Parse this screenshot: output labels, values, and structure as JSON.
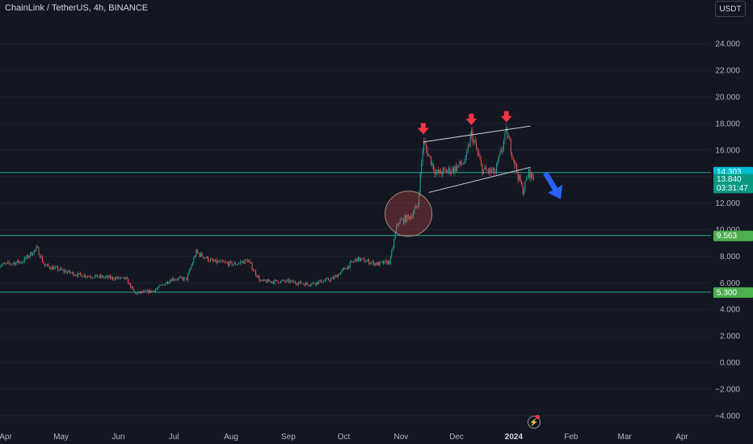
{
  "header": {
    "title": "ChainLink / TetherUS, 4h, BINANCE",
    "currency_button": "USDT"
  },
  "colors": {
    "background": "#131722",
    "up": "#26a69a",
    "down": "#ef5350",
    "arrow_red": "#f23645",
    "arrow_blue": "#2962ff",
    "level_line": "#26a69a",
    "green_badge": "#4caf50",
    "teal_badge": "#00bcd4"
  },
  "chart_data": {
    "type": "candlestick",
    "title": "",
    "x_ticks": [
      "Apr",
      "May",
      "Jun",
      "Jul",
      "Aug",
      "Sep",
      "Oct",
      "Nov",
      "Dec",
      "2024",
      "Feb",
      "Mar",
      "Apr"
    ],
    "y_ticks": [
      "24.000",
      "22.000",
      "20.000",
      "18.000",
      "16.000",
      "14.000",
      "12.000",
      "10.000",
      "8.000",
      "6.000",
      "4.000",
      "2.000",
      "0.000",
      "−2.000",
      "−4.000"
    ],
    "ylim": [
      -4.5,
      26.5
    ],
    "price_path": [
      {
        "date": "2023-03-28",
        "price": 7.3
      },
      {
        "date": "2023-04-10",
        "price": 7.6
      },
      {
        "date": "2023-04-18",
        "price": 8.6
      },
      {
        "date": "2023-04-22",
        "price": 7.3
      },
      {
        "date": "2023-05-10",
        "price": 6.6
      },
      {
        "date": "2023-05-25",
        "price": 6.4
      },
      {
        "date": "2023-06-05",
        "price": 6.3
      },
      {
        "date": "2023-06-10",
        "price": 5.2
      },
      {
        "date": "2023-06-20",
        "price": 5.4
      },
      {
        "date": "2023-06-30",
        "price": 6.3
      },
      {
        "date": "2023-07-08",
        "price": 6.3
      },
      {
        "date": "2023-07-13",
        "price": 8.3
      },
      {
        "date": "2023-07-22",
        "price": 7.6
      },
      {
        "date": "2023-08-03",
        "price": 7.4
      },
      {
        "date": "2023-08-10",
        "price": 7.7
      },
      {
        "date": "2023-08-17",
        "price": 6.1
      },
      {
        "date": "2023-09-01",
        "price": 6.1
      },
      {
        "date": "2023-09-12",
        "price": 5.9
      },
      {
        "date": "2023-09-25",
        "price": 6.3
      },
      {
        "date": "2023-10-08",
        "price": 7.8
      },
      {
        "date": "2023-10-20",
        "price": 7.4
      },
      {
        "date": "2023-10-26",
        "price": 7.6
      },
      {
        "date": "2023-10-30",
        "price": 10.5
      },
      {
        "date": "2023-11-06",
        "price": 11.0
      },
      {
        "date": "2023-11-10",
        "price": 11.8
      },
      {
        "date": "2023-11-13",
        "price": 16.6
      },
      {
        "date": "2023-11-20",
        "price": 14.2
      },
      {
        "date": "2023-11-30",
        "price": 14.6
      },
      {
        "date": "2023-12-06",
        "price": 15.2
      },
      {
        "date": "2023-12-09",
        "price": 17.3
      },
      {
        "date": "2023-12-15",
        "price": 14.5
      },
      {
        "date": "2023-12-22",
        "price": 14.3
      },
      {
        "date": "2023-12-28",
        "price": 17.4
      },
      {
        "date": "2024-01-03",
        "price": 14.2
      },
      {
        "date": "2024-01-06",
        "price": 12.9
      },
      {
        "date": "2024-01-09",
        "price": 14.3
      },
      {
        "date": "2024-01-12",
        "price": 13.84
      }
    ],
    "horizontal_levels": [
      {
        "price": 14.303,
        "label": "14.303"
      },
      {
        "price": 9.563,
        "label": "9.563"
      },
      {
        "price": 5.3,
        "label": "5.300"
      }
    ],
    "current_price": {
      "price": 13.84,
      "label": "13.840",
      "countdown": "03:31:47"
    },
    "channel": {
      "upper": [
        [
          "2023-11-13",
          16.6
        ],
        [
          "2024-01-10",
          17.8
        ]
      ],
      "lower": [
        [
          "2023-11-16",
          12.8
        ],
        [
          "2024-01-10",
          14.7
        ]
      ]
    },
    "annotations": [
      {
        "type": "arrow-down",
        "color": "red",
        "date": "2023-11-13",
        "price": 17.6
      },
      {
        "type": "arrow-down",
        "color": "red",
        "date": "2023-12-09",
        "price": 18.3
      },
      {
        "type": "arrow-down",
        "color": "red",
        "date": "2023-12-28",
        "price": 18.5
      },
      {
        "type": "circle",
        "date": "2023-11-05",
        "price": 11.2
      },
      {
        "type": "arrow-down-right",
        "color": "blue",
        "date": "2024-01-19",
        "price": 12.6
      }
    ]
  }
}
